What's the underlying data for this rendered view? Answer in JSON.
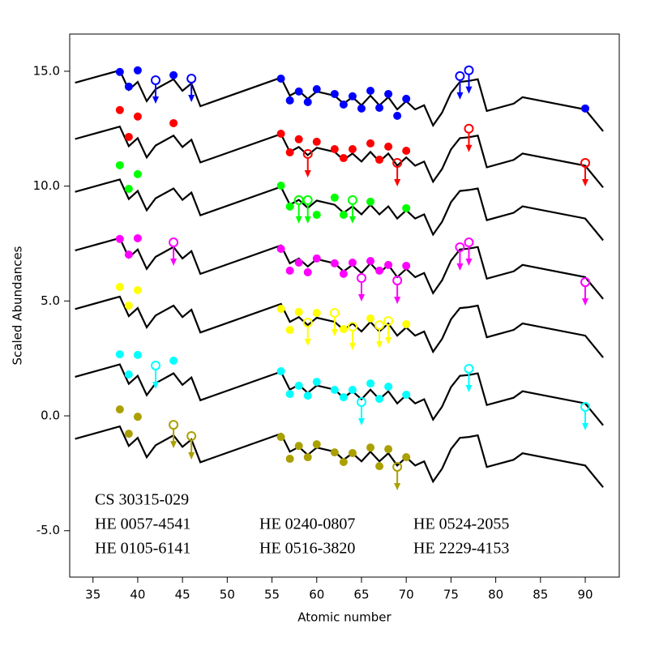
{
  "chart_data": {
    "type": "scatter",
    "x_label": "Atomic number",
    "y_label": "Scaled Abundances",
    "xlim": [
      32.4,
      93.8
    ],
    "ylim": [
      -7.02,
      16.62
    ],
    "xticks": [
      35,
      40,
      45,
      50,
      55,
      60,
      65,
      70,
      75,
      80,
      85,
      90
    ],
    "yticks": [
      {
        "value": -5,
        "label": "-5.0"
      },
      {
        "value": 0,
        "label": "0.0"
      },
      {
        "value": 5,
        "label": "5.0"
      },
      {
        "value": 10,
        "label": "10.0"
      },
      {
        "value": 15,
        "label": "15.0"
      }
    ],
    "model_x": [
      33,
      38,
      39,
      40,
      41,
      42,
      44,
      45,
      46,
      47,
      56,
      57,
      58,
      59,
      60,
      62,
      63,
      64,
      65,
      66,
      67,
      68,
      69,
      70,
      71,
      72,
      73,
      74,
      75,
      76,
      77,
      78,
      79,
      82,
      83,
      90,
      92
    ],
    "series": [
      {
        "name": "CS 30315-029",
        "color": "#0000ff",
        "x": [
          38,
          39,
          40,
          44,
          56,
          57,
          58,
          59,
          60,
          62,
          63,
          64,
          65,
          66,
          67,
          68,
          69,
          70,
          90
        ],
        "values": [
          14.97,
          14.33,
          15.04,
          14.83,
          14.68,
          13.73,
          14.12,
          13.66,
          14.22,
          14.01,
          13.55,
          13.91,
          13.38,
          14.15,
          13.41,
          14.01,
          13.06,
          13.8,
          13.38
        ],
        "limit_x": [
          42,
          46,
          76,
          77
        ],
        "limit_values": [
          14.61,
          14.68,
          14.79,
          15.04
        ],
        "model": [
          14.5,
          15.04,
          14.19,
          14.54,
          13.7,
          14.22,
          14.65,
          14.15,
          14.47,
          13.48,
          14.72,
          13.94,
          14.15,
          13.8,
          14.12,
          13.94,
          13.59,
          13.87,
          13.52,
          13.94,
          13.52,
          13.87,
          13.34,
          13.7,
          13.34,
          13.52,
          12.64,
          13.2,
          14.05,
          14.54,
          14.58,
          14.65,
          13.27,
          13.59,
          13.87,
          13.34,
          12.39
        ]
      },
      {
        "name": "HE 0057-4541",
        "color": "#ff0000",
        "x": [
          38,
          39,
          40,
          44,
          56,
          57,
          58,
          60,
          62,
          63,
          64,
          66,
          67,
          68,
          70
        ],
        "values": [
          13.31,
          12.14,
          13.03,
          12.74,
          12.28,
          11.47,
          12.04,
          11.93,
          11.61,
          11.22,
          11.61,
          11.86,
          11.15,
          11.72,
          11.54
        ],
        "limit_x": [
          59,
          69,
          77,
          90
        ],
        "limit_values": [
          11.4,
          11.01,
          12.5,
          11.01
        ],
        "model": [
          12.05,
          12.59,
          11.74,
          12.09,
          11.25,
          11.77,
          12.2,
          11.7,
          12.02,
          11.03,
          12.27,
          11.49,
          11.7,
          11.35,
          11.67,
          11.49,
          11.14,
          11.42,
          11.07,
          11.49,
          11.07,
          11.42,
          10.89,
          11.25,
          10.89,
          11.07,
          10.19,
          10.75,
          11.6,
          12.09,
          12.13,
          12.2,
          10.82,
          11.14,
          11.42,
          10.89,
          9.94
        ]
      },
      {
        "name": "HE 0105-6141",
        "color": "#00ff00",
        "x": [
          38,
          39,
          40,
          56,
          57,
          60,
          62,
          63,
          66,
          70
        ],
        "values": [
          10.91,
          9.88,
          10.52,
          10.02,
          9.11,
          8.75,
          9.5,
          8.75,
          9.32,
          9.04
        ],
        "limit_x": [
          58,
          59,
          64
        ],
        "limit_values": [
          9.39,
          9.39,
          9.39
        ],
        "model": [
          9.75,
          10.29,
          9.44,
          9.79,
          8.95,
          9.47,
          9.9,
          9.4,
          9.72,
          8.73,
          9.97,
          9.19,
          9.4,
          9.05,
          9.37,
          9.19,
          8.84,
          9.12,
          8.77,
          9.19,
          8.77,
          9.12,
          8.59,
          8.95,
          8.59,
          8.77,
          7.89,
          8.45,
          9.3,
          9.79,
          9.83,
          9.9,
          8.52,
          8.84,
          9.12,
          8.59,
          7.64
        ]
      },
      {
        "name": "HE 0240-0807",
        "color": "#ff00ff",
        "x": [
          38,
          39,
          40,
          56,
          57,
          58,
          59,
          60,
          62,
          63,
          64,
          66,
          67,
          68,
          70
        ],
        "values": [
          7.7,
          7.02,
          7.73,
          7.27,
          6.32,
          6.67,
          6.25,
          6.85,
          6.64,
          6.18,
          6.67,
          6.74,
          6.32,
          6.57,
          6.53
        ],
        "limit_x": [
          44,
          65,
          69,
          76,
          77,
          90
        ],
        "limit_values": [
          7.55,
          6.0,
          5.89,
          7.34,
          7.55,
          5.82
        ],
        "model": [
          7.2,
          7.74,
          6.89,
          7.24,
          6.4,
          6.92,
          7.35,
          6.85,
          7.17,
          6.18,
          7.42,
          6.64,
          6.85,
          6.5,
          6.82,
          6.64,
          6.29,
          6.57,
          6.22,
          6.64,
          6.22,
          6.57,
          6.04,
          6.4,
          6.04,
          6.22,
          5.34,
          5.9,
          6.75,
          7.24,
          7.28,
          7.35,
          5.97,
          6.29,
          6.57,
          6.04,
          5.09
        ]
      },
      {
        "name": "HE 0516-3820",
        "color": "#ffff00",
        "x": [
          38,
          39,
          40,
          56,
          57,
          58,
          60,
          63,
          66,
          70
        ],
        "values": [
          5.61,
          4.8,
          5.47,
          4.66,
          3.74,
          4.52,
          4.48,
          3.78,
          4.24,
          3.99
        ],
        "limit_x": [
          59,
          62,
          64,
          67,
          68
        ],
        "limit_values": [
          4.06,
          4.48,
          3.88,
          3.95,
          4.13
        ],
        "model": [
          4.65,
          5.19,
          4.34,
          4.69,
          3.85,
          4.37,
          4.8,
          4.3,
          4.62,
          3.63,
          4.87,
          4.09,
          4.3,
          3.95,
          4.27,
          4.09,
          3.74,
          4.02,
          3.67,
          4.09,
          3.67,
          4.02,
          3.49,
          3.85,
          3.49,
          3.67,
          2.79,
          3.35,
          4.2,
          4.69,
          4.73,
          4.8,
          3.42,
          3.74,
          4.02,
          3.49,
          2.54
        ]
      },
      {
        "name": "HE 0524-2055",
        "color": "#00ffff",
        "x": [
          38,
          39,
          40,
          44,
          56,
          57,
          58,
          59,
          60,
          62,
          63,
          64,
          66,
          67,
          68,
          70
        ],
        "values": [
          2.68,
          1.8,
          2.65,
          2.4,
          1.94,
          0.95,
          1.31,
          0.88,
          1.48,
          1.13,
          0.81,
          1.13,
          1.41,
          0.74,
          1.27,
          0.92
        ],
        "limit_x": [
          42,
          65,
          77,
          90
        ],
        "limit_values": [
          2.19,
          0.6,
          2.05,
          0.39
        ],
        "model": [
          1.7,
          2.24,
          1.39,
          1.74,
          0.9,
          1.42,
          1.85,
          1.35,
          1.67,
          0.68,
          1.92,
          1.14,
          1.35,
          1.0,
          1.32,
          1.14,
          0.79,
          1.07,
          0.72,
          1.14,
          0.72,
          1.07,
          0.54,
          0.9,
          0.54,
          0.72,
          -0.16,
          0.4,
          1.25,
          1.74,
          1.78,
          1.85,
          0.47,
          0.79,
          1.07,
          0.54,
          -0.41
        ]
      },
      {
        "name": "HE 2229-4153",
        "color": "#aaa000",
        "x": [
          38,
          39,
          40,
          56,
          57,
          58,
          59,
          60,
          62,
          63,
          64,
          66,
          67,
          68,
          70
        ],
        "values": [
          0.28,
          -0.78,
          -0.04,
          -0.92,
          -1.87,
          -1.31,
          -1.8,
          -1.24,
          -1.59,
          -2.01,
          -1.62,
          -1.38,
          -2.19,
          -1.45,
          -1.8
        ],
        "limit_x": [
          44,
          46,
          69
        ],
        "limit_values": [
          -0.39,
          -0.88,
          -2.22
        ],
        "model": [
          -1.0,
          -0.46,
          -1.31,
          -0.96,
          -1.8,
          -1.28,
          -0.85,
          -1.35,
          -1.03,
          -2.02,
          -0.78,
          -1.56,
          -1.35,
          -1.7,
          -1.38,
          -1.56,
          -1.91,
          -1.63,
          -1.98,
          -1.56,
          -1.98,
          -1.63,
          -2.16,
          -1.8,
          -2.16,
          -1.98,
          -2.86,
          -2.3,
          -1.45,
          -0.96,
          -0.92,
          -0.85,
          -2.23,
          -1.91,
          -1.63,
          -2.16,
          -3.11
        ]
      }
    ]
  }
}
